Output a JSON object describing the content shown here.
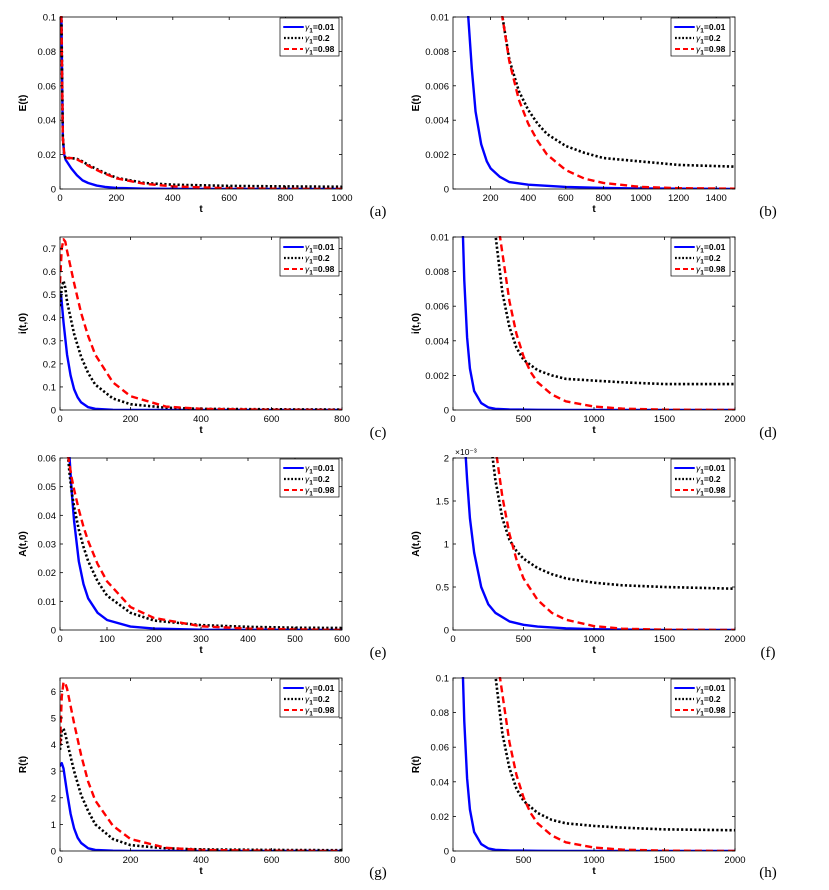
{
  "legend": {
    "symbol": "γ",
    "subscript": "1",
    "entries": [
      {
        "value": "0.01",
        "color": "#0000ff",
        "dash": "solid"
      },
      {
        "value": "0.2",
        "color": "#000000",
        "dash": "dotted"
      },
      {
        "value": "0.98",
        "color": "#ff0000",
        "dash": "dashed"
      }
    ]
  },
  "chart_data": [
    {
      "type": "line",
      "panel": "(a)",
      "ylabel": "E(t)",
      "xlabel": "t",
      "xlim": [
        0,
        1000
      ],
      "ylim": [
        0,
        0.1
      ],
      "xticks": [
        "0",
        "200",
        "400",
        "600",
        "800",
        "1000"
      ],
      "yticks": [
        "0",
        "0.02",
        "0.04",
        "0.06",
        "0.08",
        "0.1"
      ],
      "series": [
        {
          "name": "γ1=0.01",
          "x": [
            0,
            5,
            10,
            15,
            20,
            40,
            60,
            80,
            100,
            130,
            160,
            200,
            300,
            400,
            600,
            800,
            1000
          ],
          "y": [
            0.1,
            0.1,
            0.03,
            0.02,
            0.017,
            0.012,
            0.008,
            0.005,
            0.0035,
            0.002,
            0.0012,
            0.0006,
            0.0002,
            0.0001,
            0,
            0,
            0
          ]
        },
        {
          "name": "γ1=0.2",
          "x": [
            0,
            5,
            10,
            15,
            20,
            40,
            60,
            80,
            100,
            150,
            200,
            300,
            400,
            600,
            800,
            1000
          ],
          "y": [
            0.1,
            0.1,
            0.03,
            0.02,
            0.018,
            0.018,
            0.0175,
            0.016,
            0.014,
            0.01,
            0.0065,
            0.0035,
            0.0025,
            0.0018,
            0.0015,
            0.0013
          ]
        },
        {
          "name": "γ1=0.98",
          "x": [
            0,
            5,
            10,
            15,
            20,
            40,
            60,
            80,
            100,
            150,
            200,
            300,
            400,
            600,
            800,
            1000
          ],
          "y": [
            0.1,
            0.1,
            0.03,
            0.02,
            0.018,
            0.018,
            0.0172,
            0.0155,
            0.0135,
            0.0095,
            0.0062,
            0.003,
            0.0015,
            0.0004,
            0.0001,
            0
          ]
        }
      ]
    },
    {
      "type": "line",
      "panel": "(b)",
      "ylabel": "E(t)",
      "xlabel": "t",
      "xlim": [
        0,
        1500
      ],
      "ylim": [
        0,
        0.01
      ],
      "xticks": [
        "200",
        "400",
        "600",
        "800",
        "1000",
        "1200",
        "1400"
      ],
      "yticks": [
        "0",
        "0.002",
        "0.004",
        "0.006",
        "0.008",
        "0.01"
      ],
      "series": [
        {
          "name": "γ1=0.01",
          "x": [
            80,
            100,
            120,
            150,
            180,
            200,
            250,
            300,
            400,
            600,
            800,
            1000,
            1500
          ],
          "y": [
            0.0102,
            0.007,
            0.0045,
            0.0026,
            0.0016,
            0.0012,
            0.0007,
            0.0004,
            0.00025,
            0.00012,
            6e-05,
            3e-05,
            0
          ]
        },
        {
          "name": "γ1=0.2",
          "x": [
            260,
            300,
            350,
            400,
            450,
            500,
            600,
            700,
            800,
            1000,
            1200,
            1500
          ],
          "y": [
            0.0102,
            0.0075,
            0.0057,
            0.0046,
            0.0038,
            0.0032,
            0.0025,
            0.0021,
            0.0018,
            0.0016,
            0.0014,
            0.0013
          ]
        },
        {
          "name": "γ1=0.98",
          "x": [
            260,
            300,
            350,
            400,
            450,
            500,
            600,
            700,
            800,
            1000,
            1200,
            1500
          ],
          "y": [
            0.0102,
            0.0074,
            0.0052,
            0.0038,
            0.0028,
            0.002,
            0.0011,
            0.0006,
            0.00035,
            0.00012,
            5e-05,
            2e-05
          ]
        }
      ]
    },
    {
      "type": "line",
      "panel": "(c)",
      "ylabel": "i(t,0)",
      "xlabel": "t",
      "xlim": [
        0,
        800
      ],
      "ylim": [
        0,
        0.75
      ],
      "xticks": [
        "0",
        "200",
        "400",
        "600",
        "800"
      ],
      "yticks": [
        "0",
        "0.1",
        "0.2",
        "0.3",
        "0.4",
        "0.5",
        "0.6",
        "0.7"
      ],
      "series": [
        {
          "name": "γ1=0.01",
          "x": [
            0,
            3,
            10,
            20,
            30,
            40,
            50,
            60,
            80,
            100,
            150,
            200,
            800
          ],
          "y": [
            0.5,
            0.5,
            0.38,
            0.24,
            0.15,
            0.09,
            0.055,
            0.033,
            0.012,
            0.005,
            0.001,
            0,
            0
          ]
        },
        {
          "name": "γ1=0.2",
          "x": [
            0,
            5,
            10,
            15,
            20,
            40,
            60,
            80,
            100,
            150,
            200,
            300,
            400,
            600,
            800
          ],
          "y": [
            0.45,
            0.53,
            0.56,
            0.53,
            0.47,
            0.33,
            0.23,
            0.16,
            0.11,
            0.05,
            0.025,
            0.01,
            0.005,
            0.003,
            0.002
          ]
        },
        {
          "name": "γ1=0.98",
          "x": [
            0,
            5,
            10,
            15,
            20,
            40,
            60,
            80,
            100,
            150,
            200,
            300,
            400,
            600,
            800
          ],
          "y": [
            0.55,
            0.7,
            0.74,
            0.73,
            0.69,
            0.55,
            0.42,
            0.32,
            0.24,
            0.12,
            0.06,
            0.015,
            0.005,
            0.001,
            0
          ]
        }
      ]
    },
    {
      "type": "line",
      "panel": "(d)",
      "ylabel": "i(t,0)",
      "xlabel": "t",
      "xlim": [
        0,
        2000
      ],
      "ylim": [
        0,
        0.01
      ],
      "xticks": [
        "0",
        "500",
        "1000",
        "1500",
        "2000"
      ],
      "yticks": [
        "0",
        "0.002",
        "0.004",
        "0.006",
        "0.008",
        "0.01"
      ],
      "series": [
        {
          "name": "γ1=0.01",
          "x": [
            70,
            80,
            100,
            120,
            150,
            200,
            250,
            300,
            400,
            600,
            800,
            1000,
            2000
          ],
          "y": [
            0.0102,
            0.0075,
            0.0042,
            0.0024,
            0.0011,
            0.0004,
            0.00015,
            7e-05,
            3e-05,
            1e-05,
            0,
            0,
            0
          ]
        },
        {
          "name": "γ1=0.2",
          "x": [
            300,
            350,
            400,
            450,
            500,
            600,
            700,
            800,
            1000,
            1200,
            1500,
            2000
          ],
          "y": [
            0.0102,
            0.0068,
            0.0048,
            0.0036,
            0.0029,
            0.0023,
            0.002,
            0.0018,
            0.0017,
            0.0016,
            0.0015,
            0.0015
          ]
        },
        {
          "name": "γ1=0.98",
          "x": [
            330,
            400,
            450,
            500,
            550,
            600,
            700,
            800,
            1000,
            1200,
            1500,
            2000
          ],
          "y": [
            0.0102,
            0.0063,
            0.0044,
            0.0031,
            0.0022,
            0.0016,
            0.0009,
            0.0005,
            0.0002,
            8e-05,
            2e-05,
            0
          ]
        }
      ]
    },
    {
      "type": "line",
      "panel": "(e)",
      "ylabel": "A(t,0)",
      "xlabel": "t",
      "xlim": [
        0,
        600
      ],
      "ylim": [
        0,
        0.06
      ],
      "xticks": [
        "0",
        "100",
        "200",
        "300",
        "400",
        "500",
        "600"
      ],
      "yticks": [
        "0",
        "0.01",
        "0.02",
        "0.03",
        "0.04",
        "0.05",
        "0.06"
      ],
      "series": [
        {
          "name": "γ1=0.01",
          "x": [
            20,
            25,
            30,
            40,
            50,
            60,
            80,
            100,
            150,
            200,
            300,
            600
          ],
          "y": [
            0.061,
            0.048,
            0.038,
            0.024,
            0.016,
            0.011,
            0.006,
            0.0035,
            0.0012,
            0.0005,
            0.0001,
            0
          ]
        },
        {
          "name": "γ1=0.2",
          "x": [
            17,
            20,
            25,
            30,
            40,
            50,
            60,
            80,
            100,
            150,
            200,
            300,
            400,
            500,
            600
          ],
          "y": [
            0.061,
            0.055,
            0.048,
            0.043,
            0.035,
            0.029,
            0.024,
            0.017,
            0.012,
            0.006,
            0.0033,
            0.0017,
            0.0011,
            0.0008,
            0.0007
          ]
        },
        {
          "name": "γ1=0.98",
          "x": [
            17,
            20,
            25,
            30,
            40,
            50,
            60,
            80,
            100,
            150,
            200,
            300,
            400,
            500,
            600
          ],
          "y": [
            0.061,
            0.058,
            0.053,
            0.049,
            0.042,
            0.036,
            0.031,
            0.023,
            0.017,
            0.008,
            0.0042,
            0.0013,
            0.0005,
            0.0002,
            0
          ]
        }
      ]
    },
    {
      "type": "line",
      "panel": "(f)",
      "ylabel": "A(t,0)",
      "xlabel": "t",
      "xlim": [
        0,
        2000
      ],
      "ylim": [
        0,
        2
      ],
      "multiplier": "×10⁻³",
      "xticks": [
        "0",
        "500",
        "1000",
        "1500",
        "2000"
      ],
      "yticks": [
        "0",
        "0.5",
        "1",
        "1.5",
        "2"
      ],
      "series": [
        {
          "name": "γ1=0.01",
          "x": [
            90,
            100,
            120,
            150,
            200,
            250,
            300,
            400,
            500,
            600,
            800,
            1000,
            1500,
            2000
          ],
          "y": [
            2.02,
            1.75,
            1.3,
            0.9,
            0.5,
            0.3,
            0.2,
            0.1,
            0.06,
            0.04,
            0.02,
            0.01,
            0,
            0
          ]
        },
        {
          "name": "γ1=0.2",
          "x": [
            280,
            300,
            350,
            400,
            450,
            500,
            600,
            700,
            800,
            1000,
            1200,
            1500,
            2000
          ],
          "y": [
            2.02,
            1.75,
            1.3,
            1.05,
            0.92,
            0.83,
            0.72,
            0.65,
            0.6,
            0.55,
            0.52,
            0.5,
            0.48
          ]
        },
        {
          "name": "γ1=0.98",
          "x": [
            310,
            350,
            400,
            450,
            500,
            600,
            700,
            800,
            1000,
            1200,
            1500,
            2000
          ],
          "y": [
            2.02,
            1.55,
            1.12,
            0.82,
            0.6,
            0.35,
            0.2,
            0.12,
            0.045,
            0.015,
            0.004,
            0
          ]
        }
      ]
    },
    {
      "type": "line",
      "panel": "(g)",
      "ylabel": "R(t)",
      "xlabel": "t",
      "xlim": [
        0,
        800
      ],
      "ylim": [
        0,
        6.5
      ],
      "xticks": [
        "0",
        "200",
        "400",
        "600",
        "800"
      ],
      "yticks": [
        "0",
        "1",
        "2",
        "3",
        "4",
        "5",
        "6"
      ],
      "series": [
        {
          "name": "γ1=0.01",
          "x": [
            0,
            5,
            10,
            20,
            30,
            40,
            50,
            60,
            80,
            100,
            150,
            200,
            800
          ],
          "y": [
            3.2,
            3.3,
            3.1,
            2.2,
            1.4,
            0.85,
            0.5,
            0.3,
            0.1,
            0.04,
            0.01,
            0,
            0
          ]
        },
        {
          "name": "γ1=0.2",
          "x": [
            0,
            5,
            10,
            15,
            20,
            40,
            60,
            80,
            100,
            150,
            200,
            300,
            400,
            600,
            800
          ],
          "y": [
            3.8,
            4.5,
            4.6,
            4.4,
            4.1,
            3.0,
            2.1,
            1.5,
            1.0,
            0.45,
            0.22,
            0.1,
            0.06,
            0.04,
            0.03
          ]
        },
        {
          "name": "γ1=0.98",
          "x": [
            0,
            5,
            10,
            15,
            20,
            40,
            60,
            80,
            100,
            150,
            200,
            300,
            400,
            600,
            800
          ],
          "y": [
            4.0,
            5.8,
            6.35,
            6.3,
            6.1,
            4.8,
            3.6,
            2.6,
            1.9,
            0.95,
            0.45,
            0.12,
            0.04,
            0.01,
            0
          ]
        }
      ]
    },
    {
      "type": "line",
      "panel": "(h)",
      "ylabel": "R(t)",
      "xlabel": "t",
      "xlim": [
        0,
        2000
      ],
      "ylim": [
        0,
        0.1
      ],
      "xticks": [
        "0",
        "500",
        "1000",
        "1500",
        "2000"
      ],
      "yticks": [
        "0",
        "0.02",
        "0.04",
        "0.06",
        "0.08",
        "0.1"
      ],
      "series": [
        {
          "name": "γ1=0.01",
          "x": [
            70,
            80,
            100,
            120,
            150,
            200,
            250,
            300,
            400,
            600,
            800,
            1000,
            2000
          ],
          "y": [
            0.102,
            0.075,
            0.042,
            0.024,
            0.011,
            0.004,
            0.0015,
            0.0007,
            0.0003,
            0.0001,
            0,
            0,
            0
          ]
        },
        {
          "name": "γ1=0.2",
          "x": [
            300,
            350,
            400,
            450,
            500,
            600,
            700,
            800,
            1000,
            1200,
            1500,
            2000
          ],
          "y": [
            0.102,
            0.068,
            0.048,
            0.036,
            0.029,
            0.022,
            0.018,
            0.016,
            0.0145,
            0.0135,
            0.0125,
            0.012
          ]
        },
        {
          "name": "γ1=0.98",
          "x": [
            330,
            400,
            450,
            500,
            550,
            600,
            700,
            800,
            1000,
            1200,
            1500,
            2000
          ],
          "y": [
            0.102,
            0.063,
            0.044,
            0.031,
            0.022,
            0.016,
            0.009,
            0.005,
            0.002,
            0.0008,
            0.0002,
            0
          ]
        }
      ]
    }
  ]
}
